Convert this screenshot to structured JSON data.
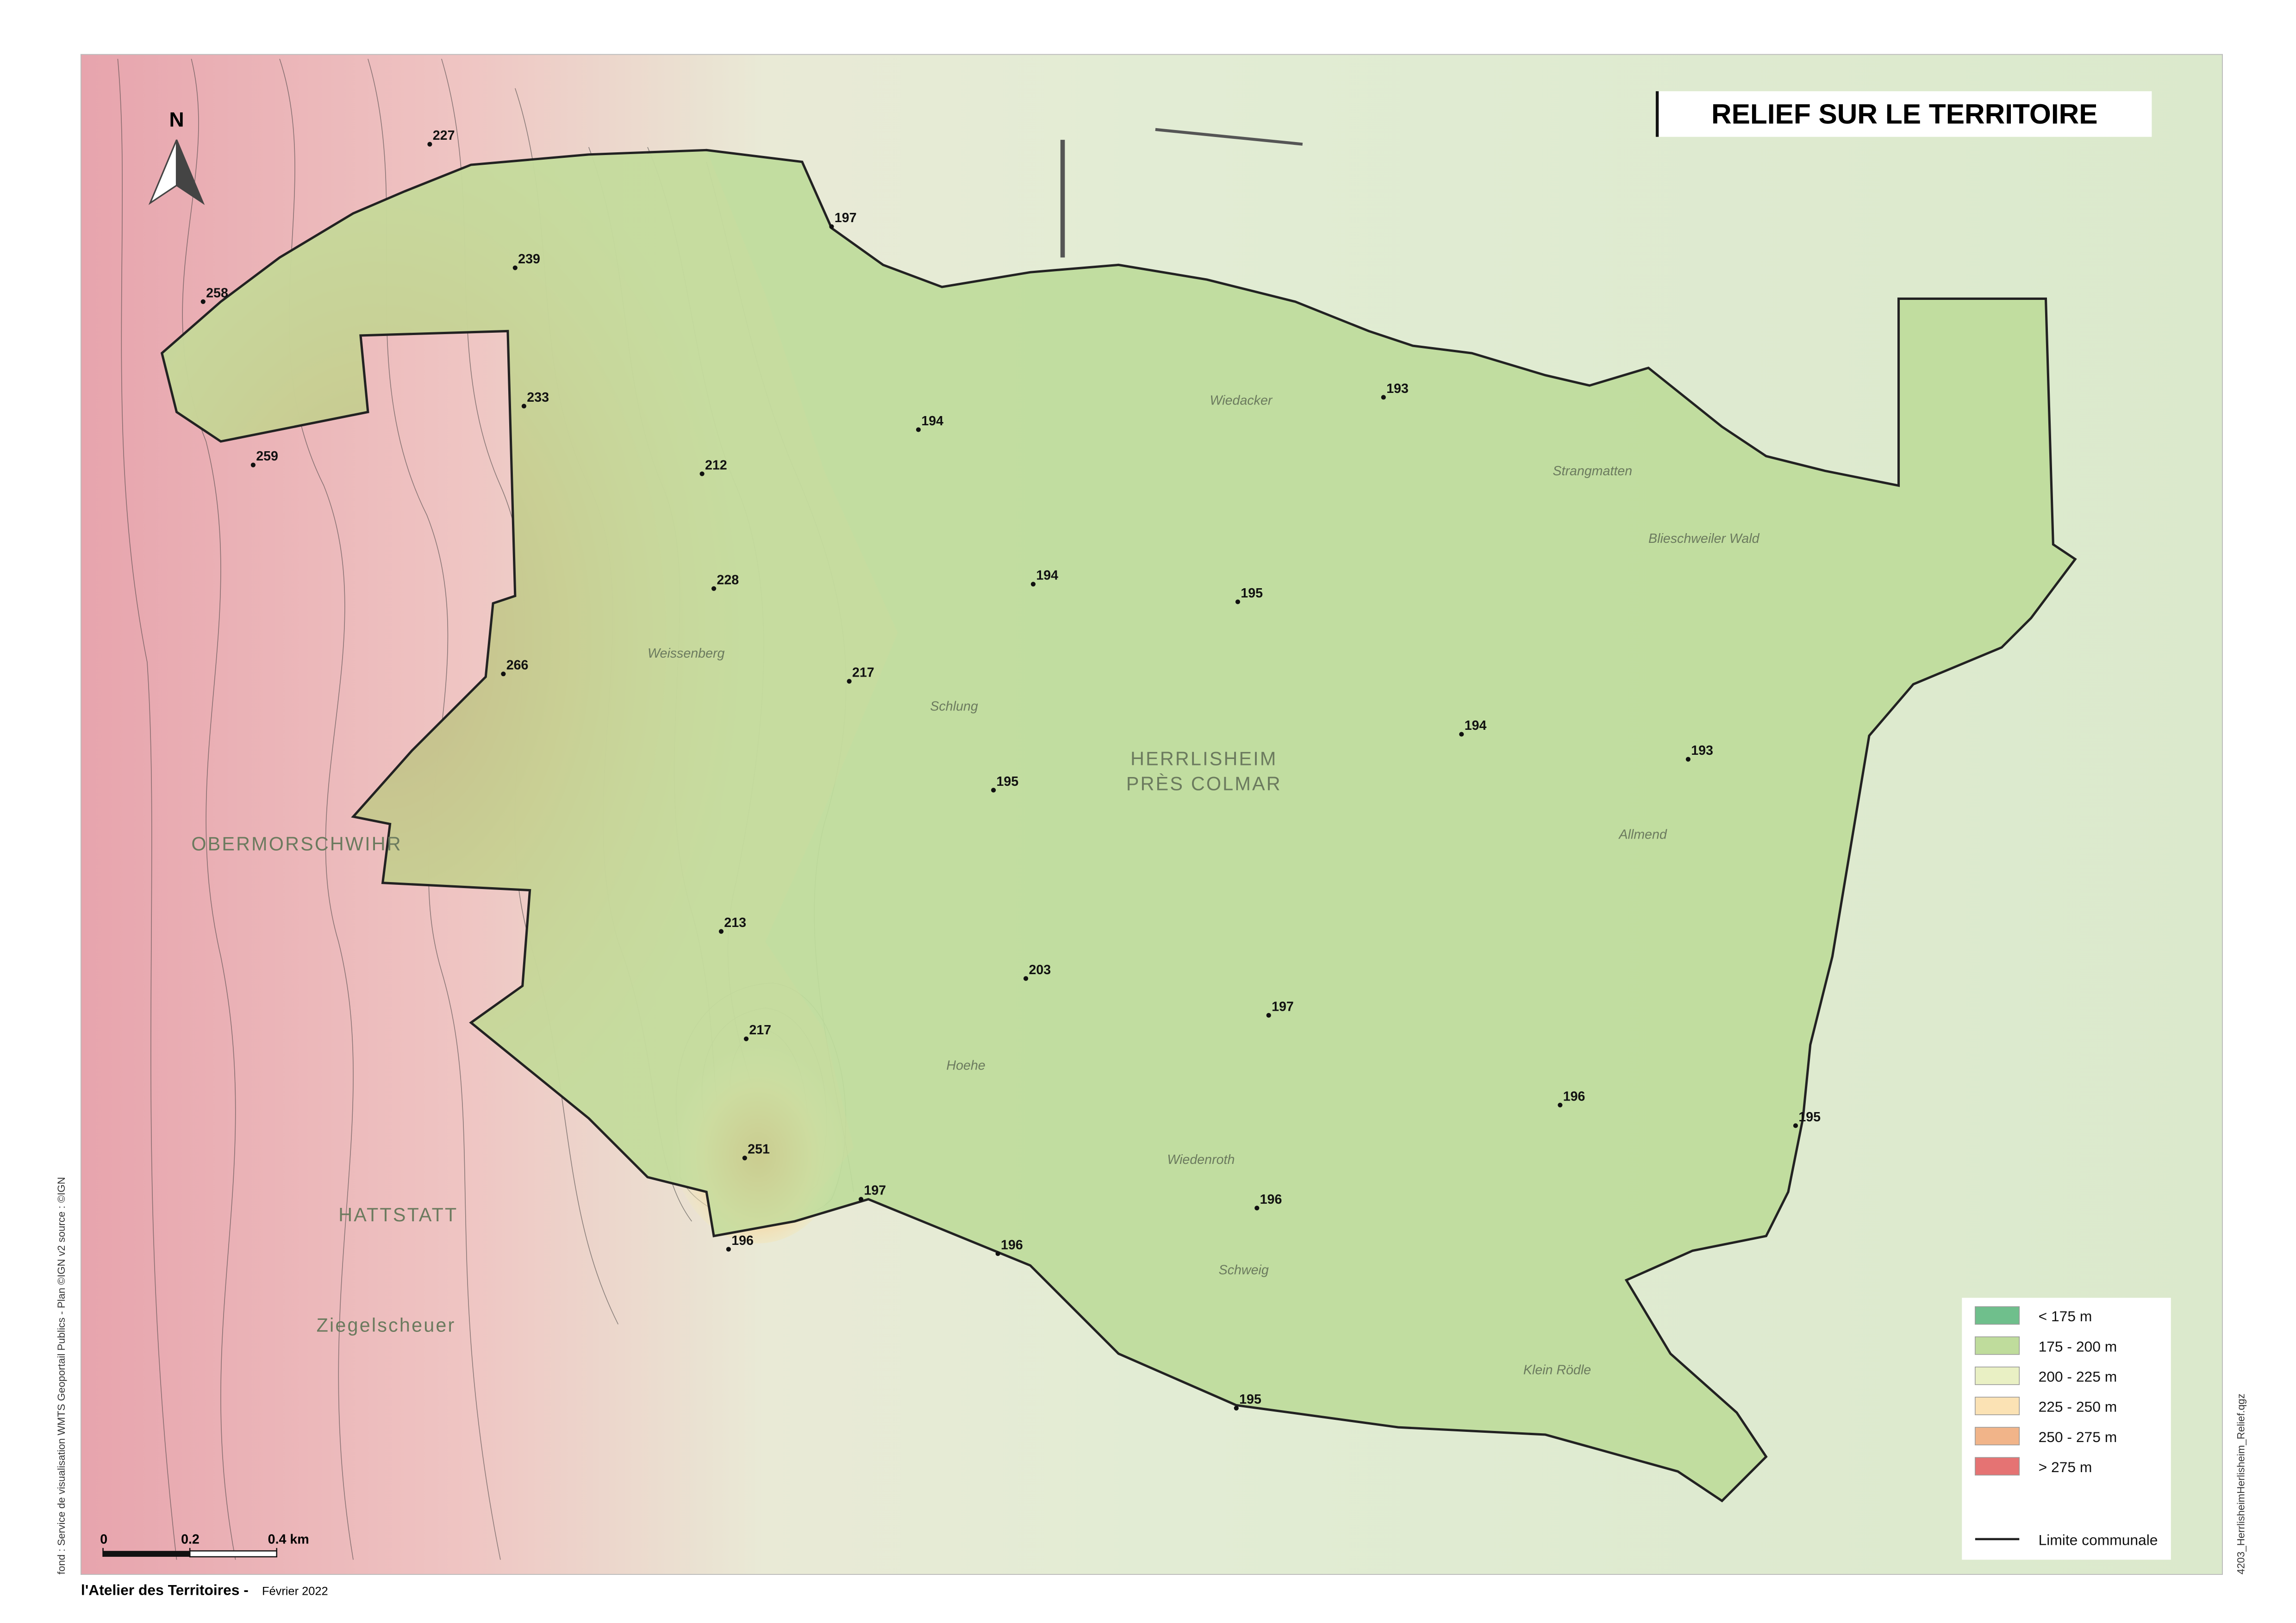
{
  "title": "RELIEF SUR LE TERRITOIRE",
  "north": "N",
  "legend": {
    "items": [
      {
        "label": "< 175 m",
        "color": "#6fbf8c"
      },
      {
        "label": "175 - 200 m",
        "color": "#bfdc9c"
      },
      {
        "label": "200 - 225 m",
        "color": "#e9f0c4"
      },
      {
        "label": "225 - 250 m",
        "color": "#fbe2b4"
      },
      {
        "label": "250 - 275 m",
        "color": "#f1b489"
      },
      {
        "label": "> 275 m",
        "color": "#e57373"
      }
    ],
    "boundary": "Limite communale"
  },
  "spot_heights": [
    227,
    197,
    258,
    239,
    233,
    194,
    259,
    212,
    193,
    194,
    228,
    195,
    266,
    217,
    194,
    193,
    195,
    213,
    203,
    197,
    217,
    196,
    195,
    251,
    197,
    196,
    196,
    196,
    195
  ],
  "places": [
    "Schlung",
    "Hoehe",
    "Weissenberg",
    "Wiedenroth",
    "Schweig",
    "Klein Rödle",
    "Strangmatten",
    "Blieschweiler Wald",
    "Allmend",
    "Wiedacker",
    "OBERMORSCHWIHR",
    "HATTSTATT",
    "Ziegelscheuer"
  ],
  "town": [
    "HERRLISHEIM",
    "PRÈS COLMAR"
  ],
  "scale_bar": [
    0,
    0.2,
    {
      "value": 0.4,
      "label": "0.4 km"
    }
  ],
  "footer": {
    "author": "l'Atelier des Territoires -",
    "date": "Février 2022"
  },
  "source": "fond : Service de visualisation WMTS Geoportail Publics - Plan ©IGN v2   source : ©IGN",
  "file": "4203_HerrlisheimHerlisheim_Relief.qgz"
}
